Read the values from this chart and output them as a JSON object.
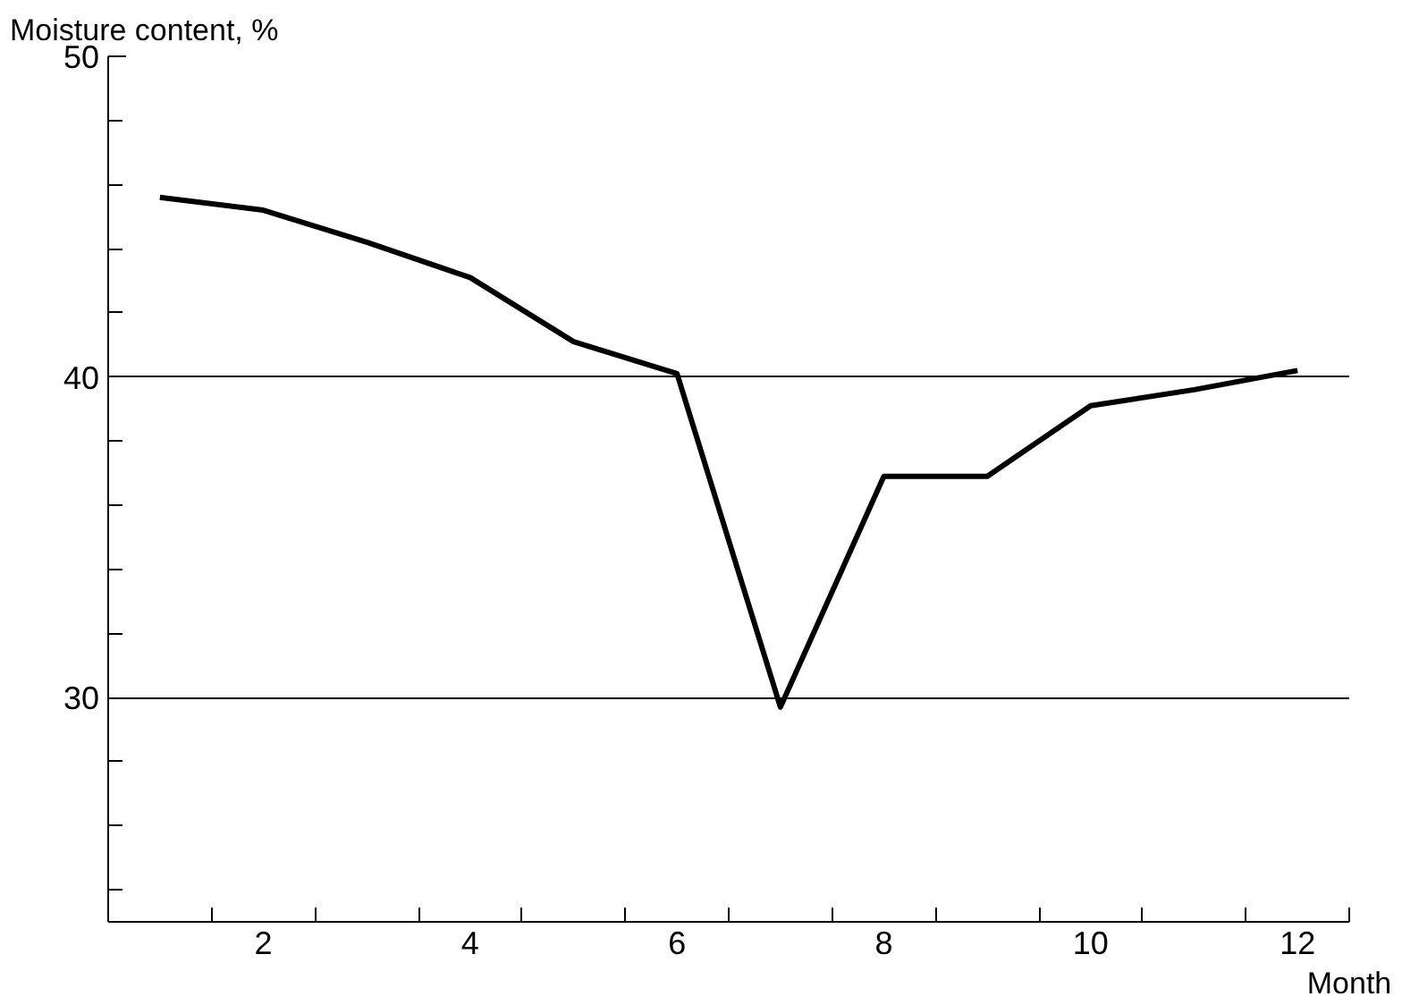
{
  "chart_data": {
    "type": "line",
    "xlabel": "Month",
    "ylabel": "Moisture content, %",
    "x": [
      1,
      2,
      3,
      4,
      5,
      6,
      7,
      8,
      9,
      10,
      11,
      12
    ],
    "series": [
      {
        "color": "#000000",
        "values": [
          45.6,
          45.2,
          44.2,
          43.1,
          41.1,
          40.1,
          29.7,
          36.9,
          36.9,
          39.1,
          39.6,
          40.2
        ]
      }
    ],
    "xlim": [
      0.5,
      12.5
    ],
    "ylim": [
      23,
      50
    ],
    "xticks": [
      {
        "value": 0.5,
        "label": null
      },
      {
        "value": 1.5,
        "label": null
      },
      2,
      {
        "value": 2.5,
        "label": null
      },
      {
        "value": 3.5,
        "label": null
      },
      4,
      {
        "value": 4.5,
        "label": null
      },
      {
        "value": 5.5,
        "label": null
      },
      6,
      {
        "value": 6.5,
        "label": null
      },
      {
        "value": 7.5,
        "label": null
      },
      8,
      {
        "value": 8.5,
        "label": null
      },
      {
        "value": 9.5,
        "label": null
      },
      10,
      {
        "value": 10.5,
        "label": null
      },
      {
        "value": 11.5,
        "label": null
      },
      12,
      {
        "value": 12.5,
        "label": null
      }
    ],
    "yticks": [
      {
        "value": 24,
        "label": null
      },
      {
        "value": 26,
        "label": null
      },
      {
        "value": 28,
        "label": null
      },
      30,
      {
        "value": 32,
        "label": null
      },
      {
        "value": 34,
        "label": null
      },
      {
        "value": 36,
        "label": null
      },
      {
        "value": 38,
        "label": null
      },
      40,
      {
        "value": 42,
        "label": null
      },
      {
        "value": 44,
        "label": null
      },
      {
        "value": 46,
        "label": null
      },
      {
        "value": 48,
        "label": null
      },
      50
    ],
    "grid": "y",
    "marker": "none",
    "line_style": "solid"
  }
}
